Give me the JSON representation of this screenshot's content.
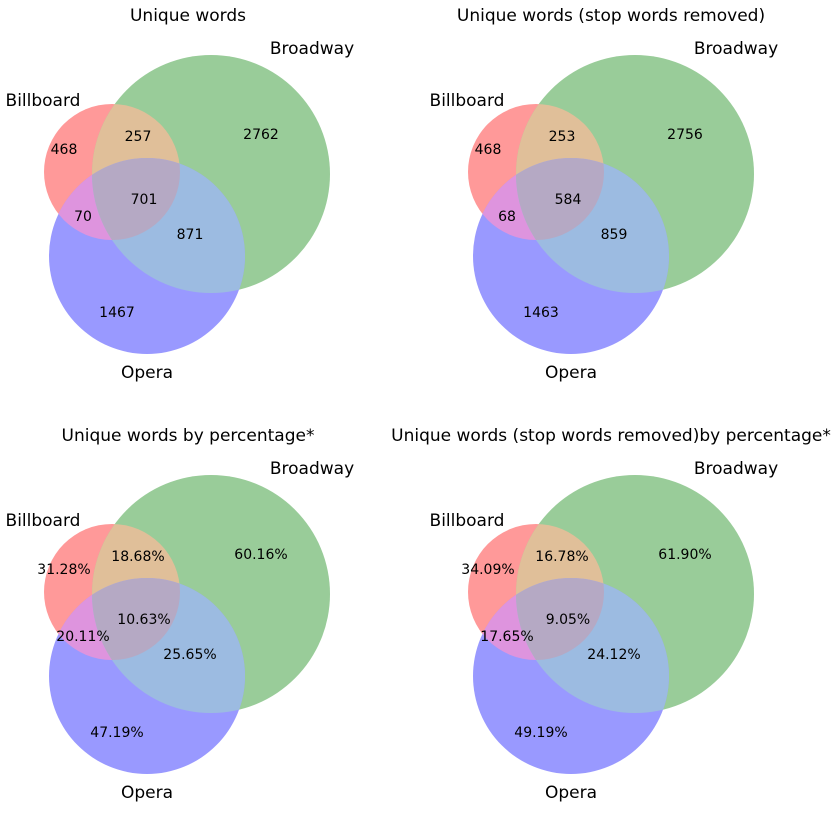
{
  "colors": {
    "billboard": "#ff9999",
    "broadway": "#99cc99",
    "opera": "#9999ff",
    "billboard_broadway": "#e0bf99",
    "billboard_opera": "#de94de",
    "broadway_opera": "#9cbbe1",
    "all": "#b5a9c4"
  },
  "chart_data": [
    {
      "type": "venn",
      "title": "Unique words",
      "sets": [
        "Billboard",
        "Broadway",
        "Opera"
      ],
      "regions": {
        "billboard_only": "468",
        "broadway_only": "2762",
        "opera_only": "1467",
        "billboard_broadway": "257",
        "billboard_opera": "70",
        "broadway_opera": "871",
        "all": "701"
      }
    },
    {
      "type": "venn",
      "title": "Unique words (stop words removed)",
      "sets": [
        "Billboard",
        "Broadway",
        "Opera"
      ],
      "regions": {
        "billboard_only": "468",
        "broadway_only": "2756",
        "opera_only": "1463",
        "billboard_broadway": "253",
        "billboard_opera": "68",
        "broadway_opera": "859",
        "all": "584"
      }
    },
    {
      "type": "venn",
      "title": "Unique words by percentage*",
      "sets": [
        "Billboard",
        "Broadway",
        "Opera"
      ],
      "regions": {
        "billboard_only": "31.28%",
        "broadway_only": "60.16%",
        "opera_only": "47.19%",
        "billboard_broadway": "18.68%",
        "billboard_opera": "20.11%",
        "broadway_opera": "25.65%",
        "all": "10.63%"
      }
    },
    {
      "type": "venn",
      "title": "Unique words (stop words removed)by percentage*",
      "sets": [
        "Billboard",
        "Broadway",
        "Opera"
      ],
      "regions": {
        "billboard_only": "34.09%",
        "broadway_only": "61.90%",
        "opera_only": "49.19%",
        "billboard_broadway": "16.78%",
        "billboard_opera": "17.65%",
        "broadway_opera": "24.12%",
        "all": "9.05%"
      }
    }
  ]
}
